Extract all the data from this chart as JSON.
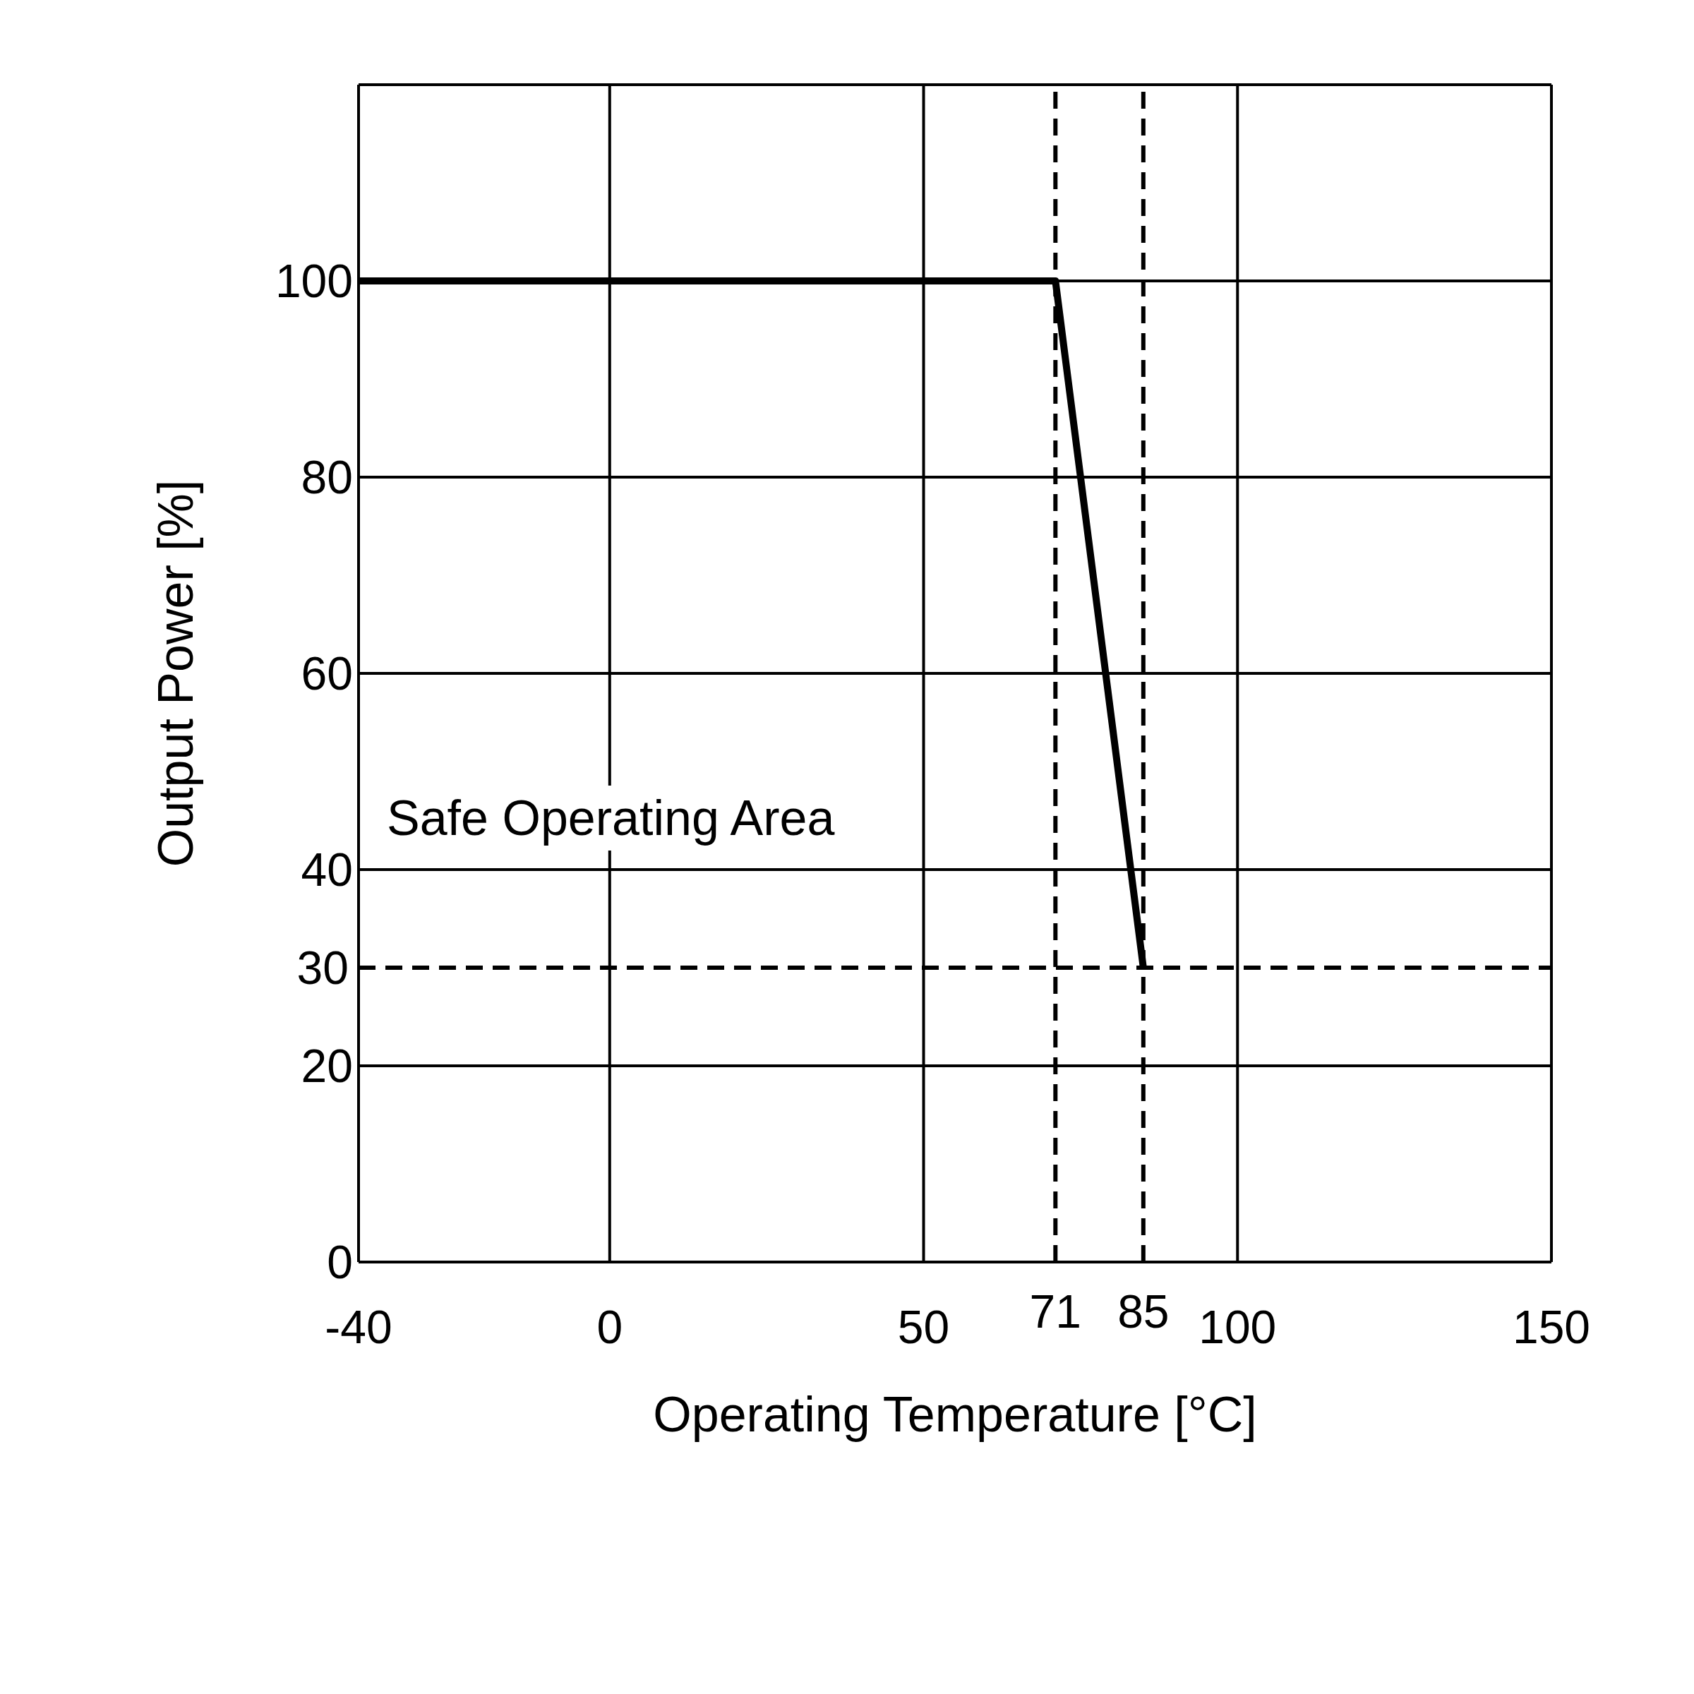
{
  "chart_data": {
    "type": "line",
    "xlabel": "Operating Temperature [°C]",
    "ylabel": "Output Power [%]",
    "x": [
      -40,
      71,
      85
    ],
    "series": [
      {
        "color": "#000000",
        "values": [
          100,
          100,
          30
        ]
      }
    ],
    "xlim": [
      -40,
      150
    ],
    "xticks": [
      -40,
      0,
      50,
      100,
      150
    ],
    "ylim": [
      0,
      120
    ],
    "yticks": [
      0,
      20,
      40,
      60,
      80,
      100
    ],
    "grid": true,
    "marker": "none",
    "line_style": "solid",
    "ref_lines": [
      {
        "axis": "x",
        "value": 71,
        "label": "71",
        "line_style": "dashed",
        "color": "#000000"
      },
      {
        "axis": "x",
        "value": 85,
        "label": "85",
        "line_style": "dashed",
        "color": "#000000"
      },
      {
        "axis": "y",
        "value": 30,
        "label": "30",
        "line_style": "dashed",
        "color": "#000000"
      }
    ],
    "annotations": [
      "Safe Operating Area"
    ]
  }
}
